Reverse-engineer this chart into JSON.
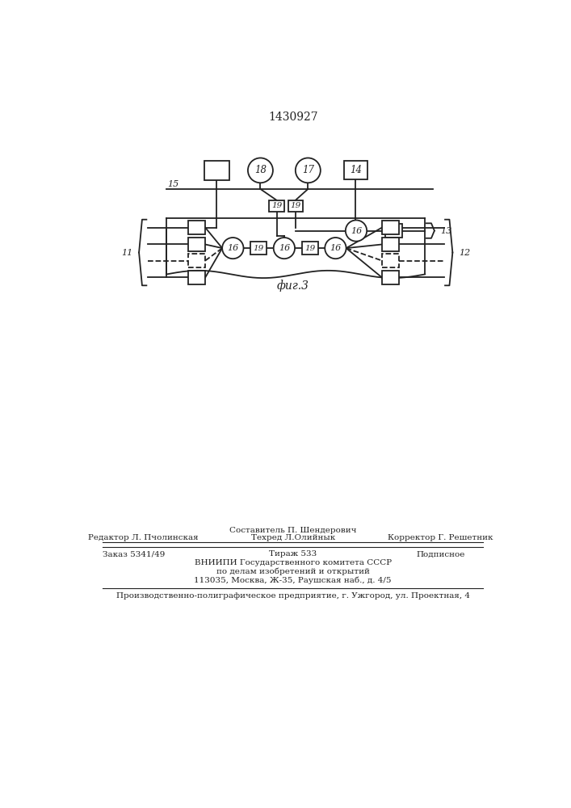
{
  "patent_number": "1430927",
  "fig_label": "фиг.3",
  "bg_color": "#ffffff",
  "line_color": "#222222",
  "footer_sestavitel": "Составитель П. Шендерович",
  "footer_redaktor": "Редактор Л. Пчолинская",
  "footer_tehred": "Техред Л.Олийнык",
  "footer_korrektor": "Корректор Г. Решетник",
  "footer_zakaz": "Заказ 5341/49",
  "footer_tirazh": "Тираж 533",
  "footer_podpisnoe": "Подписное",
  "footer_vniipи": "ВНИИПИ Государственного комитета СССР",
  "footer_podel": "по делам изобретений и открытий",
  "footer_addr": "113035, Москва, Ж-35, Раушская наб., д. 4/5",
  "footer_predpr": "Производственно-полиграфическое предприятие, г. Ужгород, ул. Проектная, 4"
}
